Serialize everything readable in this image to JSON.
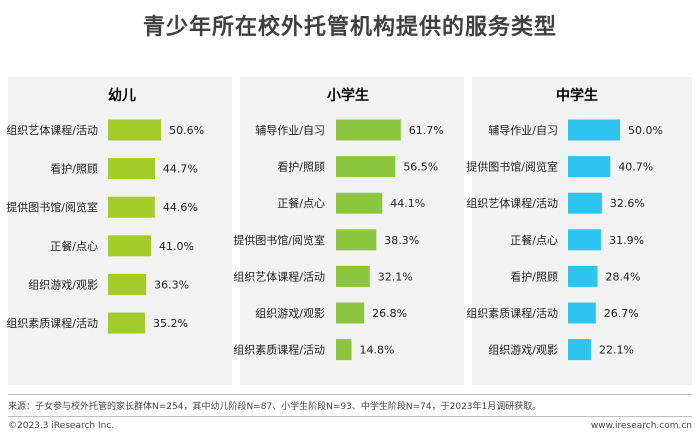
{
  "title": "青少年所在校外托管机构提供的服务类型",
  "colors": {
    "green": "#a3cc2a",
    "green_mid": "#8cc63f",
    "blue": "#2ec4ef",
    "panel_bg": "#f2f2f2"
  },
  "chart_data": [
    {
      "type": "bar",
      "title": "幼儿",
      "categories": [
        "组织艺体课程/活动",
        "看护/照顾",
        "提供图书馆/阅览室",
        "正餐/点心",
        "组织游戏/观影",
        "组织素质课程/活动"
      ],
      "values": [
        50.6,
        44.7,
        44.6,
        41.0,
        36.3,
        35.2
      ],
      "labels": [
        "50.6%",
        "44.7%",
        "44.6%",
        "41.0%",
        "36.3%",
        "35.2%"
      ],
      "unit": "%",
      "color": "#a3cc2a"
    },
    {
      "type": "bar",
      "title": "小学生",
      "categories": [
        "辅导作业/自习",
        "看护/照顾",
        "正餐/点心",
        "提供图书馆/阅览室",
        "组织艺体课程/活动",
        "组织游戏/观影",
        "组织素质课程/活动"
      ],
      "values": [
        61.7,
        56.5,
        44.1,
        38.3,
        32.1,
        26.8,
        14.8
      ],
      "labels": [
        "61.7%",
        "56.5%",
        "44.1%",
        "38.3%",
        "32.1%",
        "26.8%",
        "14.8%"
      ],
      "unit": "%",
      "color": "#8cc63f"
    },
    {
      "type": "bar",
      "title": "中学生",
      "categories": [
        "辅导作业/自习",
        "提供图书馆/阅览室",
        "组织艺体课程/活动",
        "正餐/点心",
        "看护/照顾",
        "组织素质课程/活动",
        "组织游戏/观影"
      ],
      "values": [
        50.0,
        40.7,
        32.6,
        31.9,
        28.4,
        26.7,
        22.1
      ],
      "labels": [
        "50.0%",
        "40.7%",
        "32.6%",
        "31.9%",
        "28.4%",
        "26.7%",
        "22.1%"
      ],
      "unit": "%",
      "color": "#2ec4ef"
    }
  ],
  "footer": {
    "source": "来源：子女参与校外托管的家长群体N=254，其中幼儿阶段N=87、小学生阶段N=93、中学生阶段N=74，于2023年1月调研获取。",
    "copyright": "©2023.3 iResearch Inc.",
    "website": "www.iresearch.com.cn"
  }
}
